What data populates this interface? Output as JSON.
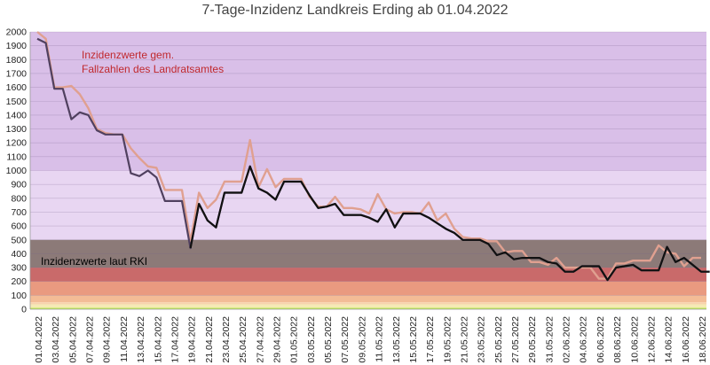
{
  "chart_data": {
    "type": "line",
    "title": "7-Tage-Inzidenz Landkreis Erding ab 01.04.2022",
    "ylim": [
      0,
      2000
    ],
    "yticks": [
      0,
      100,
      200,
      300,
      400,
      500,
      600,
      700,
      800,
      900,
      1000,
      1100,
      1200,
      1300,
      1400,
      1500,
      1600,
      1700,
      1800,
      1900,
      2000
    ],
    "x_labels": [
      "01.04.2022",
      "03.04.2022",
      "05.04.2022",
      "07.04.2022",
      "09.04.2022",
      "11.04.2022",
      "13.04.2022",
      "15.04.2022",
      "17.04.2022",
      "19.04.2022",
      "21.04.2022",
      "23.04.2022",
      "25.04.2022",
      "27.04.2022",
      "29.04.2022",
      "01.05.2022",
      "03.05.2022",
      "05.05.2022",
      "07.05.2022",
      "09.05.2022",
      "11.05.2022",
      "13.05.2022",
      "15.05.2022",
      "17.05.2022",
      "19.05.2022",
      "21.05.2022",
      "23.05.2022",
      "25.05.2022",
      "27.05.2022",
      "29.05.2022",
      "31.05.2022",
      "02.06.2022",
      "04.06.2022",
      "06.06.2022",
      "08.06.2022",
      "10.06.2022",
      "12.06.2022",
      "14.06.2022",
      "16.06.2022",
      "18.06.2022"
    ],
    "bands": [
      {
        "from": 1000,
        "to": 2000,
        "color": "#d9bfe8"
      },
      {
        "from": 500,
        "to": 1000,
        "color": "#e8d6f2"
      },
      {
        "from": 300,
        "to": 500,
        "color": "#8c7a78"
      },
      {
        "from": 200,
        "to": 300,
        "color": "#c96a6a"
      },
      {
        "from": 100,
        "to": 200,
        "color": "#e99a80"
      },
      {
        "from": 50,
        "to": 100,
        "color": "#f3bc96"
      },
      {
        "from": 35,
        "to": 50,
        "color": "#f7d3ad"
      },
      {
        "from": 10,
        "to": 35,
        "color": "#f5e9b5"
      },
      {
        "from": 0,
        "to": 10,
        "color": "#c2ec55"
      }
    ],
    "series": [
      {
        "name": "Inzidenzwerte gem. Fallzahlen des Landratsamtes",
        "color": "#e0a090",
        "values": [
          2000,
          1950,
          1600,
          1600,
          1610,
          1550,
          1450,
          1300,
          1270,
          1260,
          1260,
          1160,
          1090,
          1030,
          1020,
          860,
          860,
          860,
          490,
          840,
          730,
          790,
          920,
          920,
          920,
          1220,
          880,
          1010,
          880,
          940,
          940,
          940,
          810,
          740,
          740,
          810,
          730,
          730,
          720,
          690,
          830,
          720,
          690,
          700,
          700,
          690,
          770,
          640,
          690,
          580,
          520,
          510,
          510,
          490,
          490,
          410,
          420,
          420,
          340,
          340,
          320,
          370,
          300,
          300,
          300,
          300,
          220,
          220,
          330,
          330,
          350,
          350,
          350,
          460,
          410,
          400,
          310,
          370,
          370
        ],
        "overrides": {
          "34": 380,
          "36": 410,
          "37": 420,
          "38": 420,
          "39": 340,
          "41": 310,
          "51": 400
        }
      },
      {
        "name": "Inzidenzwerte laut RKI",
        "color": "#50405f",
        "values": [
          1950,
          1920,
          1590,
          1590,
          1370,
          1420,
          1400,
          1290,
          1260,
          1260,
          1260,
          980,
          960,
          1000,
          950,
          780,
          780,
          780,
          440,
          760,
          640,
          590,
          840,
          840,
          840,
          1030,
          870,
          840,
          790,
          920,
          920,
          920,
          820,
          730,
          740,
          760,
          680,
          680,
          680,
          660,
          630,
          720,
          590,
          690,
          690,
          690,
          660,
          620,
          580,
          550,
          500,
          500,
          500,
          470,
          390,
          410,
          360,
          370,
          370,
          370,
          340,
          330,
          270,
          270,
          310,
          310,
          310,
          210,
          300,
          310,
          320,
          280,
          280,
          280,
          450,
          340,
          370,
          320,
          270,
          270
        ]
      }
    ],
    "annotations": [
      {
        "text": "Inzidenzwerte gem.",
        "color": "#c0282d"
      },
      {
        "text": "Fallzahlen des Landratsamtes",
        "color": "#c0282d"
      },
      {
        "text": "Inzidenzwerte laut RKI",
        "color": "#000000"
      }
    ]
  }
}
